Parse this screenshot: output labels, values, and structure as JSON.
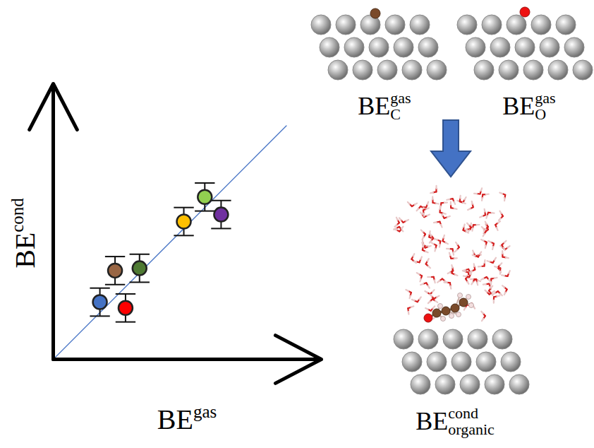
{
  "chart_data": {
    "type": "scatter",
    "x_label": {
      "text": "BE",
      "superscript": "gas"
    },
    "y_label": {
      "text": "BE",
      "superscript": "cond"
    },
    "xlim": [
      0,
      11.5
    ],
    "ylim": [
      0,
      11.8
    ],
    "xticks": [],
    "yticks": [],
    "tick_labels": false,
    "marker": "circle",
    "points": [
      {
        "x": 2.0,
        "y": 2.45,
        "y_error": 0.6,
        "color": "#4472C4"
      },
      {
        "x": 3.1,
        "y": 2.2,
        "y_error": 0.6,
        "color": "#FF0000"
      },
      {
        "x": 2.65,
        "y": 3.8,
        "y_error": 0.6,
        "color": "#996644"
      },
      {
        "x": 3.7,
        "y": 3.9,
        "y_error": 0.6,
        "color": "#4E7A33"
      },
      {
        "x": 5.6,
        "y": 5.9,
        "y_error": 0.6,
        "color": "#FFC000"
      },
      {
        "x": 6.5,
        "y": 6.95,
        "y_error": 0.6,
        "color": "#92D050"
      },
      {
        "x": 7.2,
        "y": 6.2,
        "y_error": 0.6,
        "color": "#7030A0"
      }
    ],
    "reference_line": {
      "x": [
        0,
        10
      ],
      "y": [
        0,
        10
      ],
      "color": "#4472C4",
      "line_style": "solid"
    }
  },
  "illustration": {
    "labels": [
      {
        "text": "BE",
        "superscript": "gas",
        "subscript": "C"
      },
      {
        "text": "BE",
        "superscript": "gas",
        "subscript": "O"
      },
      {
        "text": "BE",
        "superscript": "cond",
        "subscript": "organic"
      }
    ]
  }
}
